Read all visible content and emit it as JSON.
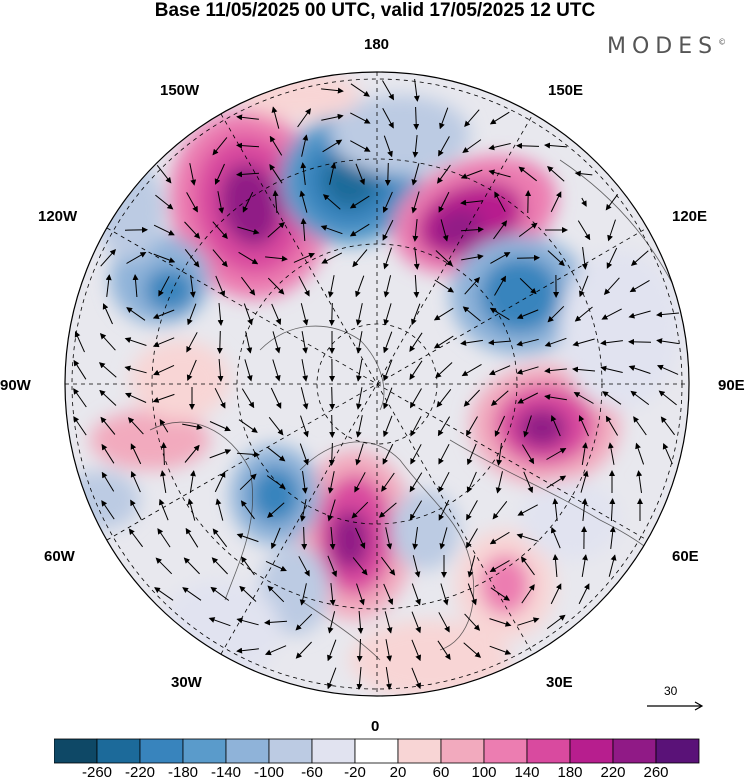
{
  "header": {
    "title": "Base 11/05/2025 00 UTC, valid 17/05/2025 12 UTC",
    "brand": "MODES",
    "brand_mark": "©"
  },
  "map": {
    "projection": "north-polar-stereographic",
    "longitude_labels": [
      "180",
      "150E",
      "120E",
      "90E",
      "60E",
      "30E",
      "0",
      "30W",
      "60W",
      "90W",
      "120W",
      "150W"
    ],
    "reference_vector": "30"
  },
  "colorbar": {
    "ticks": [
      "-260",
      "-220",
      "-180",
      "-140",
      "-100",
      "-60",
      "-20",
      "20",
      "60",
      "100",
      "140",
      "180",
      "220",
      "260"
    ],
    "colors": [
      "#0e4866",
      "#1c6a9a",
      "#3884bd",
      "#5a9bcb",
      "#8fb3d9",
      "#bccbe3",
      "#e1e3f0",
      "#ffffff",
      "#f8d5d5",
      "#f2aabe",
      "#ec7db1",
      "#d94a9f",
      "#b71e8e",
      "#901a86",
      "#5a1278"
    ]
  }
}
